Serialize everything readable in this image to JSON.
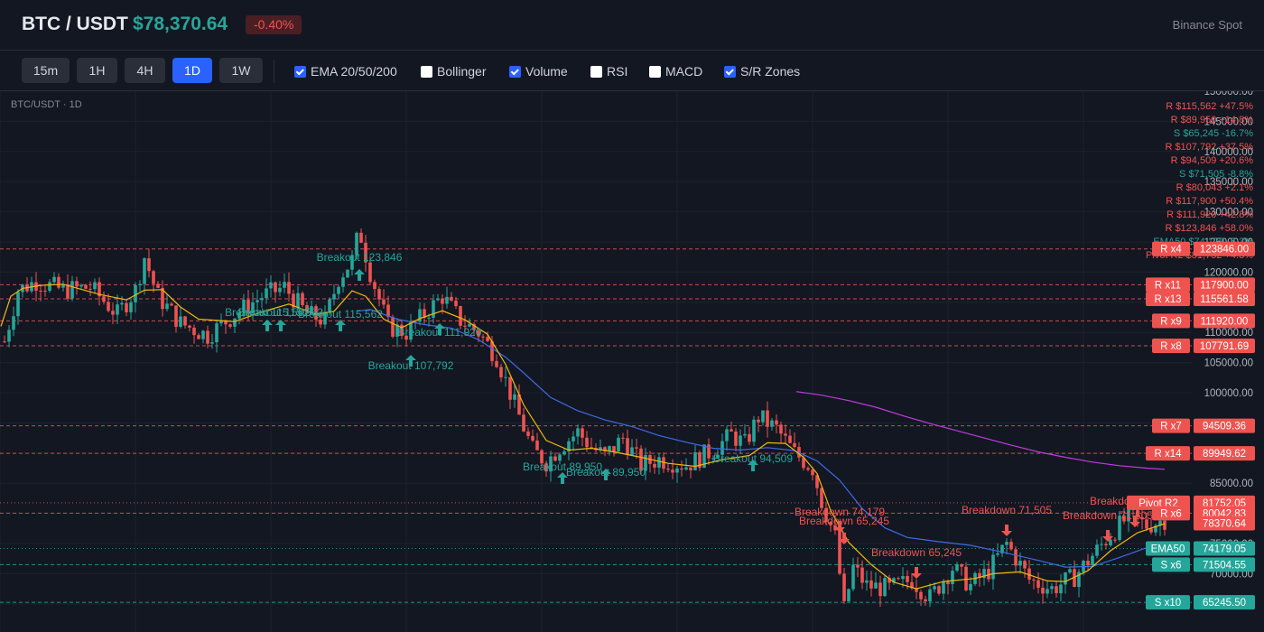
{
  "header": {
    "symbol": "BTC / USDT",
    "price": "$78,370.64",
    "change": "-0.40%",
    "exchange": "Binance Spot"
  },
  "timeframes": [
    {
      "label": "15m",
      "active": false
    },
    {
      "label": "1H",
      "active": false
    },
    {
      "label": "4H",
      "active": false
    },
    {
      "label": "1D",
      "active": true
    },
    {
      "label": "1W",
      "active": false
    }
  ],
  "indicators": [
    {
      "label": "EMA 20/50/200",
      "checked": true
    },
    {
      "label": "Bollinger",
      "checked": false
    },
    {
      "label": "Volume",
      "checked": true
    },
    {
      "label": "RSI",
      "checked": false
    },
    {
      "label": "MACD",
      "checked": false
    },
    {
      "label": "S/R Zones",
      "checked": true
    }
  ],
  "chart": {
    "pair_label": "BTC/USDT · 1D",
    "colors": {
      "up": "#26a69a",
      "down": "#ef5350",
      "ema20": "#f0b90b",
      "ema50": "#3f6ae6",
      "ema200": "#c13be0",
      "grid": "#1e222d",
      "axis_text": "#b2b5be"
    },
    "y_ticks": [
      "150000.00",
      "145000.00",
      "140000.00",
      "135000.00",
      "130000.00",
      "125000.00",
      "120000.00",
      "115000.00",
      "110000.00",
      "105000.00",
      "100000.00",
      "95000.00",
      "90000.00",
      "85000.00",
      "80000.00",
      "75000.00",
      "70000.00",
      "65000.00"
    ],
    "zone_list": [
      {
        "text": "R $115,562 +47.5%",
        "kind": "resistance"
      },
      {
        "text": "R $89,950 +14.8%",
        "kind": "resistance"
      },
      {
        "text": "S $65,245 -16.7%",
        "kind": "support"
      },
      {
        "text": "R $107,792 +37.5%",
        "kind": "resistance"
      },
      {
        "text": "R $94,509 +20.6%",
        "kind": "resistance"
      },
      {
        "text": "S $71,505 -8.8%",
        "kind": "support"
      },
      {
        "text": "R $80,043 +2.1%",
        "kind": "resistance"
      },
      {
        "text": "R $117,900 +50.4%",
        "kind": "resistance"
      },
      {
        "text": "R $111,920 +42.8%",
        "kind": "resistance"
      },
      {
        "text": "R $123,846 +58.0%",
        "kind": "resistance"
      },
      {
        "text": "EMA50 $74,179 -5.3%",
        "kind": "ema"
      },
      {
        "text": "Pivot R2 $81,752 +4.3%",
        "kind": "pivot"
      }
    ],
    "levels": [
      {
        "tag": "R x4",
        "value": "123846.00",
        "price": 123846,
        "kind": "resistance"
      },
      {
        "tag": "R x11",
        "value": "117900.00",
        "price": 117900,
        "kind": "resistance"
      },
      {
        "tag": "R x13",
        "value": "115561.58",
        "price": 115561.58,
        "kind": "resistance"
      },
      {
        "tag": "R x9",
        "value": "111920.00",
        "price": 111920,
        "kind": "resistance"
      },
      {
        "tag": "R x8",
        "value": "107791.69",
        "price": 107791.69,
        "kind": "resistance"
      },
      {
        "tag": "R x7",
        "value": "94509.36",
        "price": 94509.36,
        "kind": "resistance"
      },
      {
        "tag": "R x14",
        "value": "89949.62",
        "price": 89949.62,
        "kind": "resistance"
      },
      {
        "tag": "Pivot R2",
        "value": "81752.05",
        "price": 81752.05,
        "kind": "pivot"
      },
      {
        "tag": "R x6",
        "value": "80042.83",
        "price": 80042.83,
        "kind": "resistance"
      },
      {
        "tag": "",
        "value": "78370.64",
        "price": 78370.64,
        "kind": "last"
      },
      {
        "tag": "EMA50",
        "value": "74179.05",
        "price": 74179.05,
        "kind": "ema"
      },
      {
        "tag": "S x6",
        "value": "71504.55",
        "price": 71504.55,
        "kind": "support"
      },
      {
        "tag": "S x10",
        "value": "65245.50",
        "price": 65245.5,
        "kind": "support"
      }
    ],
    "annotations": [
      {
        "text": "Breakout 123,846",
        "kind": "up"
      },
      {
        "text": "Breakout 115,562",
        "kind": "up"
      },
      {
        "text": "Breakout 115,562",
        "kind": "up"
      },
      {
        "text": "Breakout 115,562",
        "kind": "up"
      },
      {
        "text": "Breakout 111,920",
        "kind": "up"
      },
      {
        "text": "Breakout 107,792",
        "kind": "up"
      },
      {
        "text": "Breakout 89,950",
        "kind": "up"
      },
      {
        "text": "Breakout 89,950",
        "kind": "up"
      },
      {
        "text": "Breakout 94,509",
        "kind": "up"
      },
      {
        "text": "Breakdown 74,179",
        "kind": "down"
      },
      {
        "text": "Breakdown 65,245",
        "kind": "down"
      },
      {
        "text": "Breakdown 71,505",
        "kind": "down"
      },
      {
        "text": "Breakdown 65,245",
        "kind": "down"
      },
      {
        "text": "Breakdown 71,505",
        "kind": "down"
      },
      {
        "text": "Breakdown 74,179",
        "kind": "down"
      }
    ],
    "ema20_points": [
      [
        1,
        111000
      ],
      [
        12,
        116000
      ],
      [
        25,
        117300
      ],
      [
        45,
        117800
      ],
      [
        70,
        118000
      ],
      [
        110,
        116300
      ],
      [
        140,
        115400
      ],
      [
        160,
        117000
      ],
      [
        180,
        117100
      ],
      [
        200,
        114200
      ],
      [
        220,
        112200
      ],
      [
        260,
        111800
      ],
      [
        290,
        113400
      ],
      [
        320,
        114700
      ],
      [
        350,
        113000
      ],
      [
        370,
        113500
      ],
      [
        390,
        116900
      ],
      [
        405,
        116000
      ],
      [
        425,
        112200
      ],
      [
        445,
        110800
      ],
      [
        465,
        112300
      ],
      [
        490,
        113600
      ],
      [
        515,
        112100
      ],
      [
        540,
        109700
      ],
      [
        560,
        104700
      ],
      [
        580,
        98000
      ],
      [
        605,
        92100
      ],
      [
        630,
        90500
      ],
      [
        655,
        90800
      ],
      [
        680,
        90200
      ],
      [
        710,
        89300
      ],
      [
        740,
        88300
      ],
      [
        770,
        87800
      ],
      [
        800,
        88900
      ],
      [
        830,
        89600
      ],
      [
        850,
        91700
      ],
      [
        870,
        91600
      ],
      [
        890,
        89300
      ],
      [
        905,
        86600
      ],
      [
        920,
        80500
      ],
      [
        940,
        75200
      ],
      [
        965,
        71500
      ],
      [
        990,
        68600
      ],
      [
        1015,
        67500
      ],
      [
        1045,
        68700
      ],
      [
        1080,
        69200
      ],
      [
        1100,
        70000
      ],
      [
        1130,
        70300
      ],
      [
        1160,
        68800
      ],
      [
        1180,
        68700
      ],
      [
        1205,
        70500
      ],
      [
        1230,
        73800
      ],
      [
        1260,
        76800
      ],
      [
        1290,
        78300
      ]
    ],
    "ema50_points": [
      [
        395,
        113500
      ],
      [
        410,
        113800
      ],
      [
        440,
        112200
      ],
      [
        470,
        111300
      ],
      [
        500,
        110700
      ],
      [
        530,
        108800
      ],
      [
        560,
        105900
      ],
      [
        580,
        103300
      ],
      [
        610,
        99200
      ],
      [
        640,
        97000
      ],
      [
        670,
        95500
      ],
      [
        700,
        94400
      ],
      [
        730,
        92900
      ],
      [
        760,
        91800
      ],
      [
        790,
        90800
      ],
      [
        820,
        90500
      ],
      [
        850,
        90900
      ],
      [
        880,
        90400
      ],
      [
        905,
        88700
      ],
      [
        930,
        85500
      ],
      [
        955,
        80800
      ],
      [
        980,
        77600
      ],
      [
        1005,
        76000
      ],
      [
        1040,
        75300
      ],
      [
        1075,
        74700
      ],
      [
        1110,
        73600
      ],
      [
        1150,
        72200
      ],
      [
        1180,
        71100
      ],
      [
        1210,
        71200
      ],
      [
        1240,
        72700
      ],
      [
        1270,
        74300
      ],
      [
        1290,
        74800
      ]
    ],
    "ema200_points": [
      [
        882,
        100200
      ],
      [
        910,
        99600
      ],
      [
        940,
        98700
      ],
      [
        970,
        97600
      ],
      [
        1000,
        96200
      ],
      [
        1030,
        94900
      ],
      [
        1060,
        93700
      ],
      [
        1090,
        92500
      ],
      [
        1120,
        91300
      ],
      [
        1150,
        90200
      ],
      [
        1180,
        89300
      ],
      [
        1210,
        88500
      ],
      [
        1240,
        87900
      ],
      [
        1270,
        87500
      ],
      [
        1290,
        87300
      ]
    ]
  }
}
